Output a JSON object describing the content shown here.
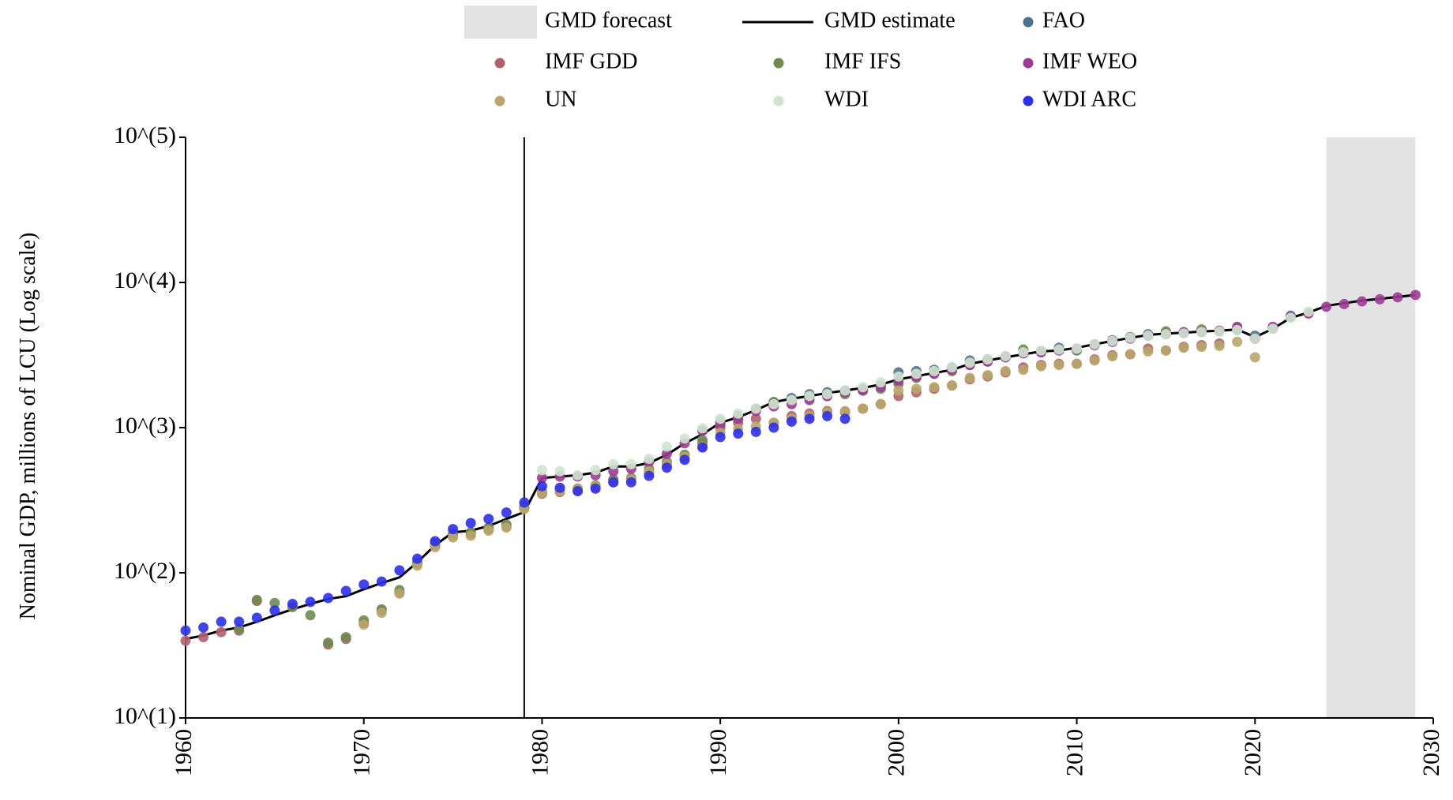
{
  "chart_data": {
    "type": "scatter",
    "ylabel": "Nominal GDP, millions of LCU (Log scale)",
    "xlabel": "",
    "y_scale": "log",
    "xlim": [
      1960,
      2030
    ],
    "ylim": [
      10,
      100000
    ],
    "x_ticks": [
      1960,
      1970,
      1980,
      1990,
      2000,
      2010,
      2020,
      2030
    ],
    "y_ticks": [
      {
        "value": 10,
        "label": "10^(1)"
      },
      {
        "value": 100,
        "label": "10^(2)"
      },
      {
        "value": 1000,
        "label": "10^(3)"
      },
      {
        "value": 10000,
        "label": "10^(4)"
      },
      {
        "value": 100000,
        "label": "10^(5)"
      }
    ],
    "reference_line_x": 1979,
    "forecast_band": {
      "label": "GMD forecast",
      "x_start": 2024,
      "x_end": 2029,
      "color": "#e3e3e3"
    },
    "legend": [
      {
        "label": "GMD forecast",
        "kind": "band",
        "color": "#e3e3e3"
      },
      {
        "label": "GMD estimate",
        "kind": "line",
        "color": "#000000"
      },
      {
        "label": "FAO",
        "kind": "point",
        "color": "#4f7189"
      },
      {
        "label": "IMF GDD",
        "kind": "point",
        "color": "#b0626b"
      },
      {
        "label": "IMF IFS",
        "kind": "point",
        "color": "#6f8a4f"
      },
      {
        "label": "IMF WEO",
        "kind": "point",
        "color": "#9b3c93"
      },
      {
        "label": "UN",
        "kind": "point",
        "color": "#b9a66d"
      },
      {
        "label": "WDI",
        "kind": "point",
        "color": "#cfe4cf"
      },
      {
        "label": "WDI ARC",
        "kind": "point",
        "color": "#2f2fe8"
      }
    ],
    "series": [
      {
        "name": "GMD estimate",
        "kind": "line",
        "color": "#000000",
        "x": [
          1960,
          1961,
          1962,
          1963,
          1964,
          1965,
          1966,
          1967,
          1968,
          1969,
          1970,
          1971,
          1972,
          1973,
          1974,
          1975,
          1976,
          1977,
          1978,
          1979,
          1980,
          1981,
          1982,
          1983,
          1984,
          1985,
          1986,
          1987,
          1988,
          1989,
          1990,
          1991,
          1992,
          1993,
          1994,
          1995,
          1996,
          1997,
          1998,
          1999,
          2000,
          2001,
          2002,
          2003,
          2004,
          2005,
          2006,
          2007,
          2008,
          2009,
          2010,
          2011,
          2012,
          2013,
          2014,
          2015,
          2016,
          2017,
          2018,
          2019,
          2020,
          2021,
          2022,
          2023,
          2024,
          2025,
          2026,
          2027,
          2028,
          2029
        ],
        "y": [
          35,
          37,
          40,
          42,
          46,
          51,
          56,
          61,
          66,
          69,
          77,
          85,
          93,
          118,
          155,
          190,
          195,
          210,
          235,
          262,
          450,
          460,
          470,
          490,
          540,
          540,
          570,
          650,
          780,
          900,
          1080,
          1180,
          1320,
          1500,
          1580,
          1650,
          1730,
          1800,
          1880,
          1980,
          2150,
          2260,
          2380,
          2500,
          2750,
          2900,
          3050,
          3200,
          3350,
          3400,
          3550,
          3750,
          3950,
          4150,
          4350,
          4450,
          4500,
          4600,
          4650,
          4750,
          4200,
          4800,
          5700,
          6200,
          6900,
          7200,
          7500,
          7700,
          7950,
          8200
        ]
      },
      {
        "name": "FAO",
        "kind": "point",
        "color": "#4f7189",
        "x": [
          1990,
          1991,
          1992,
          1993,
          1994,
          1995,
          1996,
          1997,
          1998,
          1999,
          2000,
          2001,
          2002,
          2003,
          2004,
          2005,
          2006,
          2007,
          2008,
          2009,
          2010,
          2011,
          2012,
          2013,
          2014,
          2015,
          2016,
          2017,
          2018,
          2019,
          2020,
          2021,
          2022
        ],
        "y": [
          1100,
          1200,
          1350,
          1500,
          1600,
          1700,
          1750,
          1800,
          1850,
          1950,
          2400,
          2450,
          2500,
          2600,
          2900,
          2950,
          3100,
          3250,
          3350,
          3550,
          3400,
          3750,
          4000,
          4200,
          4400,
          4500,
          4550,
          4600,
          4650,
          4700,
          4300,
          4900,
          5900
        ]
      },
      {
        "name": "IMF GDD",
        "kind": "point",
        "color": "#b0626b",
        "x": [
          1960,
          1961,
          1962,
          1963,
          1964,
          1968,
          1969,
          1970,
          1971,
          1972,
          1973,
          1974,
          1975,
          1976,
          1977,
          1978,
          1979,
          1980,
          1981,
          1982,
          1983,
          1984,
          1985,
          1986,
          1987,
          1988,
          1989,
          1990,
          1991,
          1992,
          1993,
          1994,
          1995,
          1996,
          1997,
          1998,
          1999,
          2000,
          2001,
          2002,
          2003,
          2004,
          2005,
          2006,
          2007,
          2008,
          2009,
          2010,
          2011,
          2012,
          2013,
          2014,
          2015,
          2016,
          2017,
          2018
        ],
        "y": [
          34,
          36,
          39,
          40,
          64,
          32,
          35,
          45,
          55,
          73,
          115,
          155,
          180,
          185,
          200,
          210,
          280,
          350,
          360,
          370,
          390,
          430,
          440,
          490,
          560,
          640,
          780,
          1000,
          1080,
          1150,
          1080,
          1200,
          1250,
          1300,
          1280,
          1350,
          1450,
          1650,
          1750,
          1850,
          1950,
          2150,
          2250,
          2400,
          2600,
          2700,
          2750,
          2750,
          2950,
          3150,
          3200,
          3500,
          3400,
          3600,
          3700,
          3800
        ]
      },
      {
        "name": "IMF IFS",
        "kind": "point",
        "color": "#6f8a4f",
        "x": [
          1963,
          1964,
          1965,
          1966,
          1967,
          1968,
          1969,
          1970,
          1971,
          1972,
          1973,
          1974,
          1975,
          1976,
          1977,
          1978,
          1979,
          1980,
          1981,
          1982,
          1983,
          1984,
          1985,
          1986,
          1987,
          1988,
          1989,
          1990,
          1991,
          1992,
          1993,
          1994,
          1995,
          1996,
          1997,
          1998,
          1999,
          2000,
          2001,
          2002,
          2003,
          2004,
          2005,
          2006,
          2007,
          2008,
          2009,
          2010,
          2011,
          2012,
          2013,
          2014,
          2015,
          2016,
          2017,
          2018,
          2019,
          2020,
          2021
        ],
        "y": [
          41,
          65,
          62,
          58,
          51,
          33,
          36,
          47,
          56,
          76,
          118,
          160,
          185,
          190,
          205,
          215,
          285,
          360,
          370,
          380,
          400,
          440,
          450,
          520,
          580,
          650,
          820,
          1050,
          1150,
          1330,
          1500,
          1550,
          1600,
          1650,
          1700,
          1800,
          1850,
          2000,
          2200,
          2350,
          2450,
          2700,
          2850,
          3050,
          3450,
          3350,
          3400,
          3450,
          3700,
          3900,
          4150,
          4300,
          4600,
          4500,
          4750,
          4600,
          4900,
          4100,
          4800
        ]
      },
      {
        "name": "IMF WEO",
        "kind": "point",
        "color": "#9b3c93",
        "x": [
          1980,
          1981,
          1982,
          1983,
          1984,
          1985,
          1986,
          1987,
          1988,
          1989,
          1990,
          1991,
          1992,
          1993,
          1994,
          1995,
          1996,
          1997,
          1998,
          1999,
          2000,
          2001,
          2002,
          2003,
          2004,
          2005,
          2006,
          2007,
          2008,
          2009,
          2010,
          2011,
          2012,
          2013,
          2014,
          2015,
          2016,
          2017,
          2018,
          2019,
          2020,
          2021,
          2022,
          2023,
          2024,
          2025,
          2026,
          2027,
          2028,
          2029
        ],
        "y": [
          450,
          460,
          460,
          470,
          500,
          520,
          580,
          660,
          780,
          950,
          1050,
          1150,
          1300,
          1400,
          1450,
          1550,
          1650,
          1750,
          1800,
          1900,
          2100,
          2250,
          2350,
          2500,
          2700,
          2850,
          3050,
          3250,
          3300,
          3400,
          3500,
          3700,
          3900,
          4100,
          4300,
          4400,
          4500,
          4550,
          4650,
          4950,
          4100,
          4950,
          5800,
          6100,
          6800,
          7100,
          7400,
          7650,
          7900,
          8200
        ]
      },
      {
        "name": "UN",
        "kind": "point",
        "color": "#b9a66d",
        "x": [
          1970,
          1971,
          1972,
          1973,
          1974,
          1975,
          1976,
          1977,
          1978,
          1979,
          1980,
          1981,
          1982,
          1983,
          1984,
          1985,
          1986,
          1987,
          1988,
          1989,
          1990,
          1991,
          1992,
          1993,
          1994,
          1995,
          1996,
          1997,
          1998,
          1999,
          2000,
          2001,
          2002,
          2003,
          2004,
          2005,
          2006,
          2007,
          2008,
          2009,
          2010,
          2011,
          2012,
          2013,
          2014,
          2015,
          2016,
          2017,
          2018,
          2019,
          2020
        ],
        "y": [
          44,
          53,
          72,
          112,
          150,
          175,
          180,
          195,
          205,
          275,
          355,
          365,
          375,
          395,
          420,
          440,
          500,
          560,
          630,
          740,
          920,
          980,
          1020,
          1080,
          1150,
          1200,
          1280,
          1300,
          1350,
          1450,
          1800,
          1850,
          1900,
          1950,
          2200,
          2300,
          2450,
          2500,
          2650,
          2700,
          2750,
          2900,
          3100,
          3200,
          3350,
          3400,
          3550,
          3600,
          3650,
          3900,
          3050
        ]
      },
      {
        "name": "WDI",
        "kind": "point",
        "color": "#cfe4cf",
        "x": [
          1980,
          1981,
          1982,
          1983,
          1984,
          1985,
          1986,
          1987,
          1988,
          1989,
          1990,
          1991,
          1992,
          1993,
          1994,
          1995,
          1996,
          1997,
          1998,
          1999,
          2000,
          2001,
          2002,
          2003,
          2004,
          2005,
          2006,
          2007,
          2008,
          2009,
          2010,
          2011,
          2012,
          2013,
          2014,
          2015,
          2016,
          2017,
          2018,
          2019,
          2020,
          2021,
          2022,
          2023
        ],
        "y": [
          510,
          500,
          470,
          510,
          560,
          560,
          610,
          740,
          840,
          990,
          1150,
          1250,
          1350,
          1450,
          1550,
          1650,
          1700,
          1800,
          1900,
          2050,
          2250,
          2350,
          2450,
          2600,
          2800,
          2950,
          3100,
          3300,
          3400,
          3450,
          3500,
          3750,
          3950,
          4150,
          4300,
          4400,
          4450,
          4550,
          4600,
          4700,
          4100,
          4800,
          5700,
          6300
        ]
      },
      {
        "name": "WDI ARC",
        "kind": "point",
        "color": "#2f2fe8",
        "x": [
          1960,
          1961,
          1962,
          1963,
          1964,
          1965,
          1966,
          1967,
          1968,
          1969,
          1970,
          1971,
          1972,
          1973,
          1974,
          1975,
          1976,
          1977,
          1978,
          1979,
          1980,
          1981,
          1982,
          1983,
          1984,
          1985,
          1986,
          1987,
          1988,
          1989,
          1990,
          1991,
          1992,
          1993,
          1994,
          1995,
          1996,
          1997
        ],
        "y": [
          40,
          42,
          46,
          46,
          49,
          55,
          61,
          63,
          67,
          75,
          83,
          87,
          104,
          125,
          165,
          200,
          220,
          235,
          260,
          305,
          395,
          385,
          365,
          380,
          420,
          420,
          465,
          530,
          600,
          730,
          860,
          910,
          935,
          1000,
          1100,
          1150,
          1200,
          1150
        ]
      }
    ]
  }
}
